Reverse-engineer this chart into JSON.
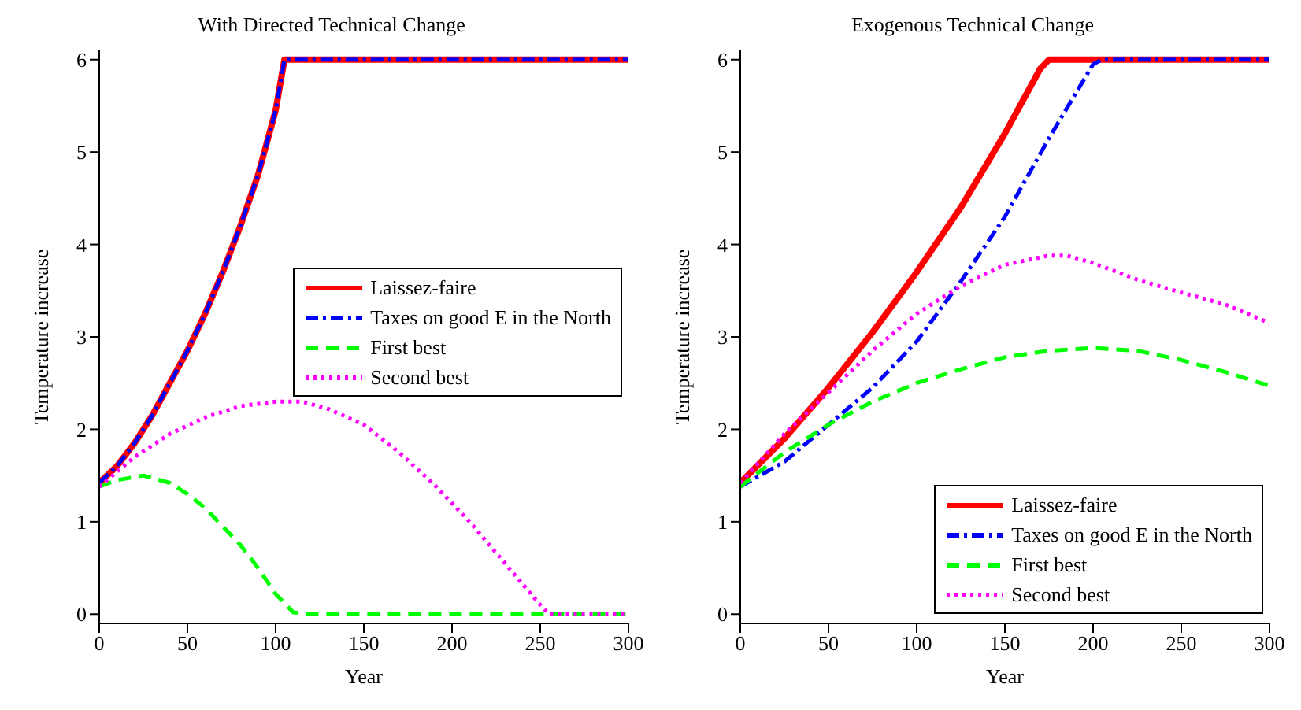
{
  "chart_data": [
    {
      "type": "line",
      "title": "With Directed Technical Change",
      "xlabel": "Year",
      "ylabel": "Temperature increase",
      "xlim": [
        0,
        300
      ],
      "xticks": [
        0,
        50,
        100,
        150,
        200,
        250,
        300
      ],
      "ylim": [
        -0.1,
        6.1
      ],
      "yticks": [
        0,
        1,
        2,
        3,
        4,
        5,
        6
      ],
      "grid": false,
      "legend": "right",
      "marker": "none",
      "series": [
        {
          "name": "Laissez-faire",
          "color": "#ff0000",
          "line_style": "solid",
          "x": [
            0,
            10,
            20,
            30,
            40,
            50,
            60,
            70,
            80,
            90,
            100,
            105,
            300
          ],
          "values": [
            1.42,
            1.6,
            1.85,
            2.15,
            2.5,
            2.85,
            3.25,
            3.7,
            4.2,
            4.75,
            5.45,
            6,
            6
          ]
        },
        {
          "name": "Taxes on good E in the North",
          "color": "#0000ff",
          "line_style": "dashdot",
          "x": [
            0,
            10,
            20,
            30,
            40,
            50,
            60,
            70,
            80,
            90,
            100,
            105,
            300
          ],
          "values": [
            1.42,
            1.6,
            1.85,
            2.15,
            2.5,
            2.85,
            3.25,
            3.7,
            4.2,
            4.75,
            5.45,
            6,
            6
          ]
        },
        {
          "name": "First best",
          "color": "#00ff00",
          "line_style": "dashed",
          "x": [
            0,
            10,
            25,
            40,
            50,
            60,
            70,
            80,
            90,
            100,
            110,
            120,
            300
          ],
          "values": [
            1.38,
            1.45,
            1.5,
            1.42,
            1.3,
            1.15,
            0.95,
            0.75,
            0.5,
            0.22,
            0.02,
            0,
            0
          ]
        },
        {
          "name": "Second best",
          "color": "#ff00ff",
          "line_style": "dotted",
          "x": [
            0,
            20,
            40,
            60,
            80,
            100,
            115,
            130,
            150,
            170,
            190,
            210,
            230,
            250,
            255,
            300
          ],
          "values": [
            1.38,
            1.7,
            1.95,
            2.13,
            2.25,
            2.3,
            2.3,
            2.22,
            2.05,
            1.75,
            1.4,
            1,
            0.55,
            0.1,
            0,
            0
          ]
        }
      ]
    },
    {
      "type": "line",
      "title": "Exogenous Technical Change",
      "xlabel": "Year",
      "ylabel": "Temperature increase",
      "xlim": [
        0,
        300
      ],
      "xticks": [
        0,
        50,
        100,
        150,
        200,
        250,
        300
      ],
      "ylim": [
        -0.1,
        6.1
      ],
      "yticks": [
        0,
        1,
        2,
        3,
        4,
        5,
        6
      ],
      "grid": false,
      "legend": "bottom right",
      "marker": "none",
      "series": [
        {
          "name": "Laissez-faire",
          "color": "#ff0000",
          "line_style": "solid",
          "x": [
            0,
            25,
            50,
            75,
            100,
            125,
            150,
            170,
            175,
            300
          ],
          "values": [
            1.42,
            1.9,
            2.45,
            3.05,
            3.7,
            4.4,
            5.2,
            5.9,
            6,
            6
          ]
        },
        {
          "name": "Taxes on good E in the North",
          "color": "#0000ff",
          "line_style": "dashdot",
          "x": [
            0,
            25,
            50,
            75,
            100,
            125,
            150,
            175,
            200,
            205,
            300
          ],
          "values": [
            1.38,
            1.65,
            2.05,
            2.45,
            2.95,
            3.6,
            4.3,
            5.15,
            5.95,
            6,
            6
          ]
        },
        {
          "name": "First best",
          "color": "#00ff00",
          "line_style": "dashed",
          "x": [
            0,
            25,
            50,
            75,
            100,
            125,
            150,
            175,
            200,
            225,
            250,
            275,
            300
          ],
          "values": [
            1.38,
            1.75,
            2.05,
            2.3,
            2.5,
            2.65,
            2.78,
            2.85,
            2.88,
            2.85,
            2.75,
            2.62,
            2.47
          ]
        },
        {
          "name": "Second best",
          "color": "#ff00ff",
          "line_style": "dotted",
          "x": [
            0,
            25,
            50,
            75,
            100,
            125,
            150,
            175,
            185,
            200,
            225,
            250,
            275,
            300
          ],
          "values": [
            1.42,
            1.95,
            2.4,
            2.85,
            3.25,
            3.55,
            3.78,
            3.88,
            3.88,
            3.8,
            3.62,
            3.48,
            3.35,
            3.15
          ]
        }
      ]
    }
  ]
}
